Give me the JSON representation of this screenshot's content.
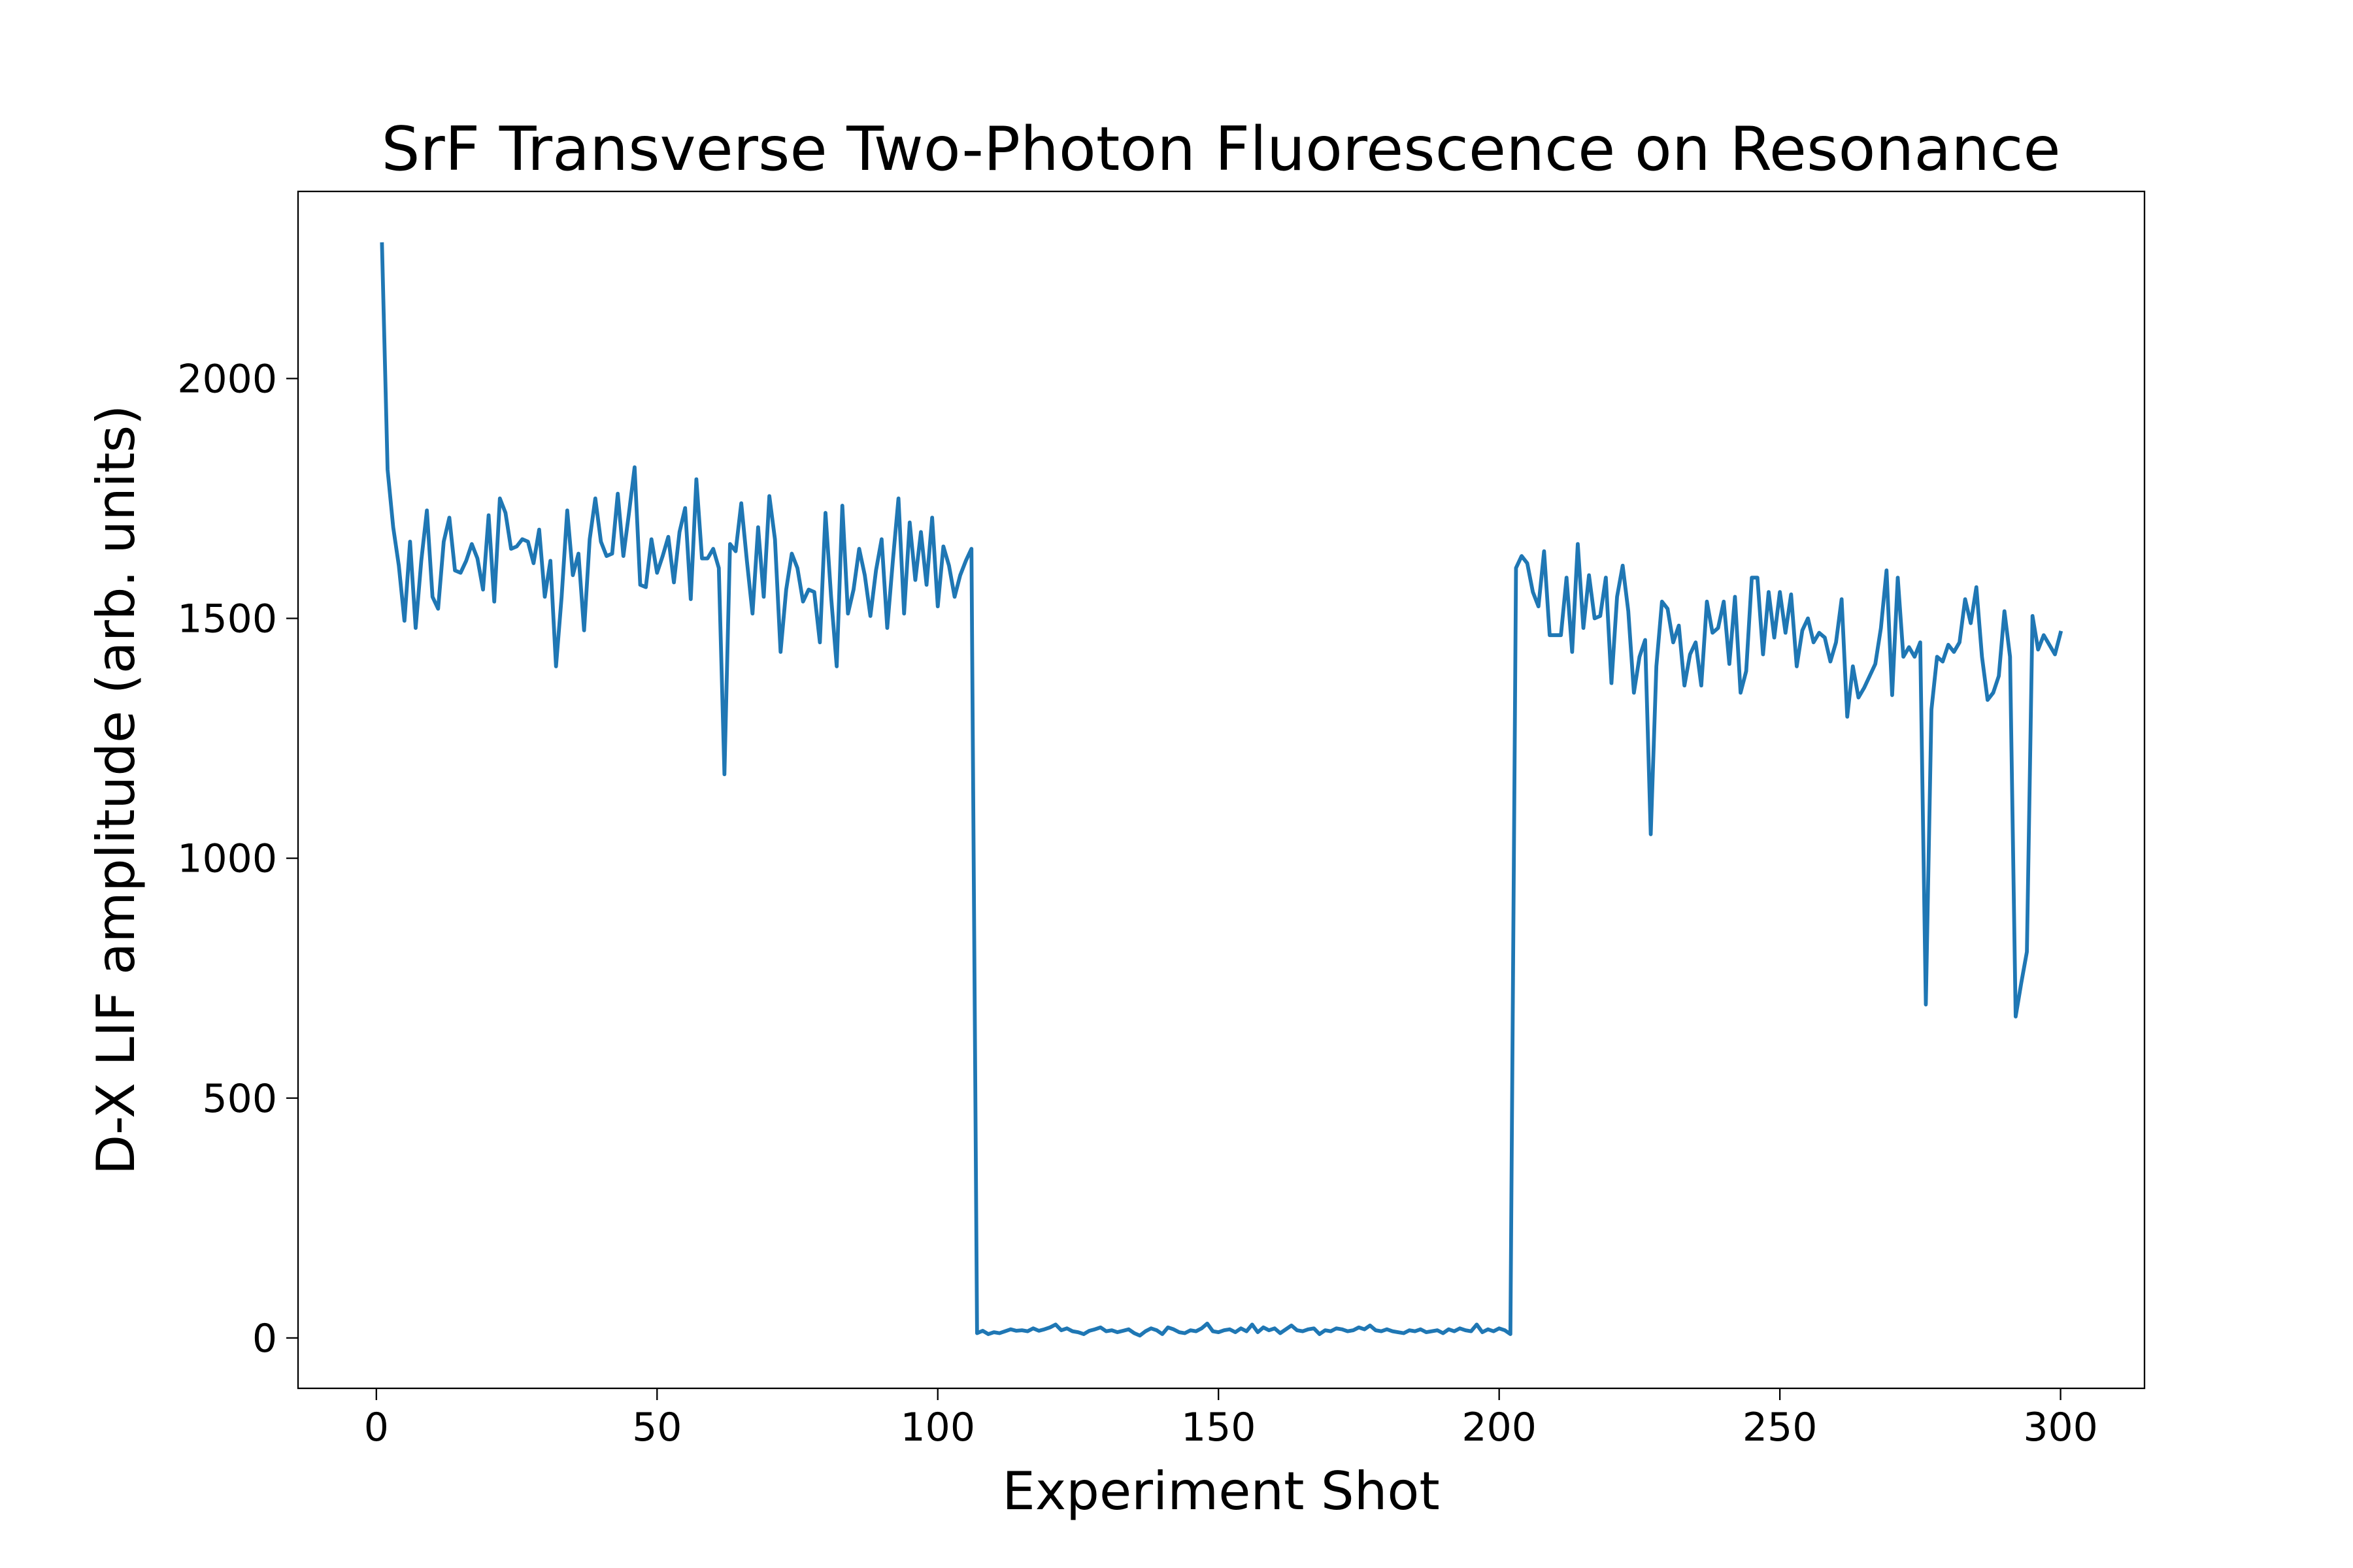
{
  "chart_data": {
    "type": "line",
    "title": "SrF Transverse Two-Photon Fluorescence on Resonance",
    "xlabel": "Experiment Shot",
    "ylabel": "D-X LIF amplitude (arb. units)",
    "color": "#1f77b4",
    "xlim": [
      -13.95,
      314.95
    ],
    "ylim": [
      -105,
      2390
    ],
    "xticks": [
      0,
      50,
      100,
      150,
      200,
      250,
      300
    ],
    "yticks": [
      0,
      500,
      1000,
      1500,
      2000
    ],
    "x": [
      1,
      2,
      3,
      4,
      5,
      6,
      7,
      8,
      9,
      10,
      11,
      12,
      13,
      14,
      15,
      16,
      17,
      18,
      19,
      20,
      21,
      22,
      23,
      24,
      25,
      26,
      27,
      28,
      29,
      30,
      31,
      32,
      33,
      34,
      35,
      36,
      37,
      38,
      39,
      40,
      41,
      42,
      43,
      44,
      45,
      46,
      47,
      48,
      49,
      50,
      51,
      52,
      53,
      54,
      55,
      56,
      57,
      58,
      59,
      60,
      61,
      62,
      63,
      64,
      65,
      66,
      67,
      68,
      69,
      70,
      71,
      72,
      73,
      74,
      75,
      76,
      77,
      78,
      79,
      80,
      81,
      82,
      83,
      84,
      85,
      86,
      87,
      88,
      89,
      90,
      91,
      92,
      93,
      94,
      95,
      96,
      97,
      98,
      99,
      100,
      101,
      102,
      103,
      104,
      105,
      106,
      107,
      108,
      109,
      110,
      111,
      112,
      113,
      114,
      115,
      116,
      117,
      118,
      119,
      120,
      121,
      122,
      123,
      124,
      125,
      126,
      127,
      128,
      129,
      130,
      131,
      132,
      133,
      134,
      135,
      136,
      137,
      138,
      139,
      140,
      141,
      142,
      143,
      144,
      145,
      146,
      147,
      148,
      149,
      150,
      151,
      152,
      153,
      154,
      155,
      156,
      157,
      158,
      159,
      160,
      161,
      162,
      163,
      164,
      165,
      166,
      167,
      168,
      169,
      170,
      171,
      172,
      173,
      174,
      175,
      176,
      177,
      178,
      179,
      180,
      181,
      182,
      183,
      184,
      185,
      186,
      187,
      188,
      189,
      190,
      191,
      192,
      193,
      194,
      195,
      196,
      197,
      198,
      199,
      200,
      201,
      202,
      203,
      204,
      205,
      206,
      207,
      208,
      209,
      210,
      211,
      212,
      213,
      214,
      215,
      216,
      217,
      218,
      219,
      220,
      221,
      222,
      223,
      224,
      225,
      226,
      227,
      228,
      229,
      230,
      231,
      232,
      233,
      234,
      235,
      236,
      237,
      238,
      239,
      240,
      241,
      242,
      243,
      244,
      245,
      246,
      247,
      248,
      249,
      250,
      251,
      252,
      253,
      254,
      255,
      256,
      257,
      258,
      259,
      260,
      261,
      262,
      263,
      264,
      265,
      266,
      267,
      268,
      269,
      270,
      271,
      272,
      273,
      274,
      275,
      276,
      277,
      278,
      279,
      280,
      281,
      282,
      283,
      284,
      285,
      286,
      287,
      288,
      289,
      290,
      291,
      292,
      293,
      294,
      295,
      296,
      297,
      298,
      299,
      300
    ],
    "values": [
      2280,
      1810,
      1690,
      1610,
      1495,
      1660,
      1480,
      1620,
      1725,
      1545,
      1520,
      1660,
      1710,
      1600,
      1595,
      1620,
      1655,
      1625,
      1560,
      1715,
      1535,
      1750,
      1720,
      1645,
      1650,
      1665,
      1660,
      1615,
      1685,
      1545,
      1620,
      1400,
      1545,
      1725,
      1590,
      1635,
      1475,
      1665,
      1750,
      1660,
      1630,
      1635,
      1760,
      1630,
      1720,
      1815,
      1570,
      1565,
      1665,
      1595,
      1630,
      1670,
      1575,
      1680,
      1730,
      1540,
      1790,
      1625,
      1625,
      1645,
      1605,
      1175,
      1655,
      1640,
      1740,
      1620,
      1510,
      1690,
      1545,
      1755,
      1665,
      1430,
      1560,
      1635,
      1605,
      1535,
      1560,
      1555,
      1450,
      1720,
      1545,
      1400,
      1735,
      1510,
      1560,
      1645,
      1590,
      1505,
      1600,
      1665,
      1480,
      1620,
      1750,
      1510,
      1700,
      1580,
      1680,
      1570,
      1710,
      1525,
      1650,
      1610,
      1545,
      1590,
      1620,
      1645,
      10,
      15,
      8,
      12,
      10,
      14,
      18,
      15,
      16,
      14,
      20,
      15,
      18,
      22,
      28,
      16,
      20,
      14,
      12,
      8,
      15,
      18,
      22,
      14,
      16,
      12,
      15,
      18,
      10,
      5,
      14,
      20,
      16,
      8,
      22,
      18,
      12,
      10,
      16,
      14,
      20,
      30,
      14,
      12,
      16,
      18,
      12,
      20,
      14,
      28,
      12,
      22,
      16,
      20,
      10,
      18,
      26,
      16,
      14,
      18,
      20,
      8,
      16,
      14,
      20,
      18,
      14,
      16,
      22,
      18,
      26,
      16,
      14,
      18,
      14,
      12,
      10,
      16,
      14,
      18,
      12,
      14,
      16,
      10,
      18,
      14,
      20,
      16,
      14,
      28,
      12,
      18,
      14,
      20,
      16,
      8,
      1605,
      1630,
      1615,
      1555,
      1525,
      1640,
      1465,
      1465,
      1465,
      1585,
      1430,
      1655,
      1480,
      1590,
      1500,
      1505,
      1585,
      1365,
      1545,
      1610,
      1515,
      1345,
      1420,
      1455,
      1050,
      1400,
      1535,
      1520,
      1450,
      1485,
      1360,
      1425,
      1450,
      1360,
      1535,
      1470,
      1480,
      1535,
      1405,
      1545,
      1345,
      1390,
      1585,
      1585,
      1425,
      1555,
      1460,
      1555,
      1470,
      1550,
      1400,
      1475,
      1500,
      1450,
      1470,
      1460,
      1410,
      1450,
      1540,
      1295,
      1400,
      1335,
      1355,
      1380,
      1405,
      1480,
      1600,
      1340,
      1585,
      1420,
      1440,
      1420,
      1450,
      695,
      1310,
      1420,
      1410,
      1445,
      1430,
      1450,
      1540,
      1490,
      1565,
      1420,
      1330,
      1345,
      1380,
      1515,
      1420,
      670,
      740,
      805,
      1505,
      1435,
      1465,
      1445,
      1425,
      1470
    ]
  }
}
